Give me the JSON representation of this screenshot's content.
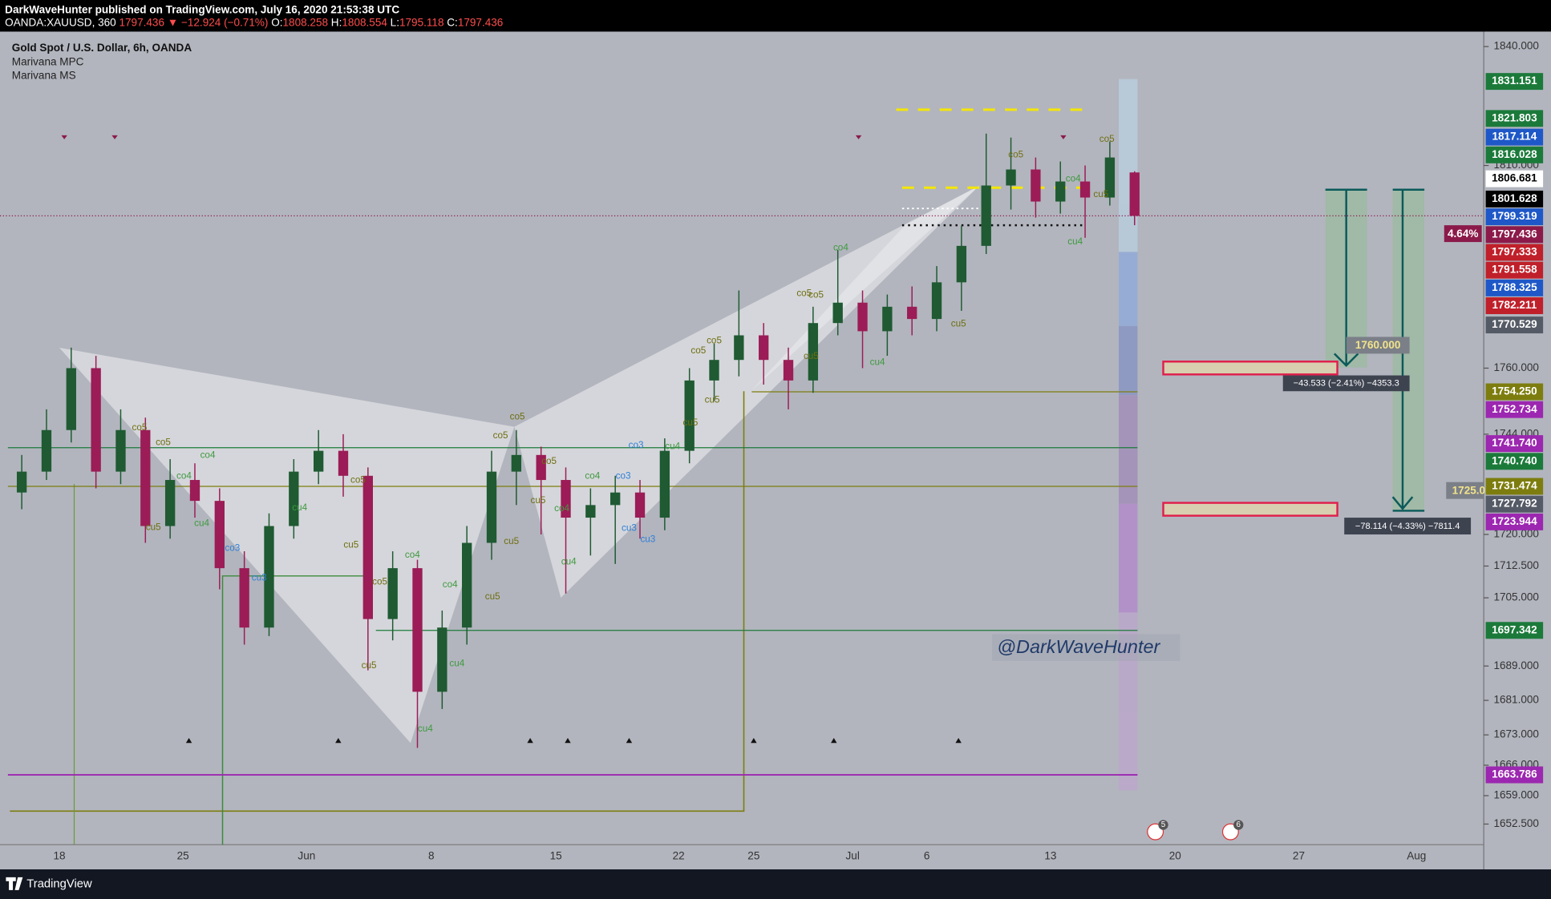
{
  "header": {
    "published": "DarkWaveHunter published on TradingView.com, July 16, 2020 21:53:38 UTC",
    "symbol": "OANDA:XAUUSD, 360",
    "last": "1797.436",
    "change": "▼ −12.924 (−0.71%)",
    "o_label": "O:",
    "o": "1808.258",
    "h_label": "H:",
    "h": "1808.554",
    "l_label": "L:",
    "l": "1795.118",
    "c_label": "C:",
    "c": "1797.436"
  },
  "legend": [
    "Gold Spot / U.S. Dollar, 6h, OANDA",
    "Marivana MPC",
    "Marivana MS"
  ],
  "watermark": "@DarkWaveHunter",
  "footer": "TradingView",
  "percent_label": "4.64%",
  "position_tools": {
    "target1": "1760.000",
    "stats1": "−43.533 (−2.41%) −4353.3",
    "target2": "1725.0",
    "stats2": "−78.114 (−4.33%) −7811.4"
  },
  "events": [
    "5",
    "6"
  ],
  "chart_data": {
    "type": "candlestick",
    "log": true,
    "grid": false,
    "up_color": "#1f5a32",
    "down_color": "#9b1c56",
    "ylim": [
      1647.8,
      1842.8
    ],
    "yticks": [
      {
        "value": 1840,
        "label": "1840.000"
      },
      {
        "value": 1810,
        "label": "1810.000"
      },
      {
        "value": 1760,
        "label": "1760.000"
      },
      {
        "value": 1744,
        "label": "1744.000"
      },
      {
        "value": 1720,
        "label": "1720.000"
      },
      {
        "value": 1712.5,
        "label": "1712.500"
      },
      {
        "value": 1705,
        "label": "1705.000"
      },
      {
        "value": 1689,
        "label": "1689.000"
      },
      {
        "value": 1681,
        "label": "1681.000"
      },
      {
        "value": 1673,
        "label": "1673.000"
      },
      {
        "value": 1666,
        "label": "1666.000"
      },
      {
        "value": 1659,
        "label": "1659.000"
      },
      {
        "value": 1652.5,
        "label": "1652.500"
      }
    ],
    "xtick_labels": [
      "18",
      "25",
      "Jun",
      "8",
      "15",
      "22",
      "25",
      "Jul",
      "6",
      "13",
      "20",
      "27",
      "Aug"
    ],
    "open": [
      1730,
      1735,
      1745,
      1760,
      1735,
      1745,
      1722,
      1733,
      1728,
      1712,
      1698,
      1722,
      1735,
      1740,
      1734,
      1700,
      1712,
      1683,
      1698,
      1718,
      1735,
      1739,
      1733,
      1724,
      1727,
      1730,
      1724,
      1740,
      1757,
      1762,
      1768,
      1762,
      1757,
      1771,
      1776,
      1769,
      1775,
      1772,
      1781,
      1790,
      1805,
      1809,
      1801,
      1806,
      1802,
      1808.258
    ],
    "high": [
      1739,
      1750,
      1765,
      1763,
      1750,
      1748,
      1738,
      1737,
      1731,
      1716,
      1725,
      1738,
      1745,
      1744,
      1736,
      1716,
      1714,
      1702,
      1722,
      1740,
      1745,
      1741,
      1736,
      1731,
      1734,
      1733,
      1743,
      1760,
      1766,
      1779,
      1771,
      1765,
      1775,
      1789,
      1779,
      1778,
      1780,
      1785,
      1795,
      1818,
      1817,
      1812,
      1811,
      1810,
      1816,
      1808.554
    ],
    "low": [
      1726,
      1733,
      1742,
      1731,
      1732,
      1718,
      1719,
      1724,
      1707,
      1694,
      1696,
      1719,
      1732,
      1729,
      1688,
      1695,
      1670,
      1679,
      1694,
      1714,
      1727,
      1720,
      1706,
      1715,
      1713,
      1719,
      1721,
      1737,
      1752,
      1758,
      1756,
      1750,
      1754,
      1768,
      1760,
      1763,
      1768,
      1769,
      1774,
      1788,
      1799,
      1797,
      1798,
      1792,
      1800,
      1795.118
    ],
    "close": [
      1735,
      1745,
      1760,
      1735,
      1745,
      1722,
      1733,
      1728,
      1712,
      1698,
      1722,
      1735,
      1740,
      1734,
      1700,
      1712,
      1683,
      1698,
      1718,
      1735,
      1739,
      1733,
      1724,
      1727,
      1730,
      1724,
      1740,
      1757,
      1762,
      1768,
      1762,
      1757,
      1771,
      1776,
      1769,
      1775,
      1772,
      1781,
      1790,
      1805,
      1809,
      1801,
      1806,
      1802,
      1812,
      1797.436
    ],
    "price_labels": [
      {
        "value": 1831.151,
        "label": "1831.151",
        "color": "#1b7a3a"
      },
      {
        "value": 1821.803,
        "label": "1821.803",
        "color": "#1b7a3a"
      },
      {
        "value": 1817.114,
        "label": "1817.114",
        "color": "#1e58c8"
      },
      {
        "value": 1816.028,
        "label": "1816.028",
        "color": "#1b7a3a"
      },
      {
        "value": 1806.681,
        "label": "1806.681",
        "color": "#ffffff"
      },
      {
        "value": 1801.628,
        "label": "1801.628",
        "color": "#000000"
      },
      {
        "value": 1799.319,
        "label": "1799.319",
        "color": "#1e58c8"
      },
      {
        "value": 1797.436,
        "label": "1797.436",
        "color": "#8b1a4a"
      },
      {
        "value": 1797.333,
        "label": "1797.333",
        "color": "#c0202a"
      },
      {
        "value": 1791.558,
        "label": "1791.558",
        "color": "#c0202a"
      },
      {
        "value": 1788.325,
        "label": "1788.325",
        "color": "#1e58c8"
      },
      {
        "value": 1782.211,
        "label": "1782.211",
        "color": "#c0202a"
      },
      {
        "value": 1770.529,
        "label": "1770.529",
        "color": "#555b66"
      },
      {
        "value": 1754.25,
        "label": "1754.250",
        "color": "#7d7d0f"
      },
      {
        "value": 1752.734,
        "label": "1752.734",
        "color": "#9c27b0"
      },
      {
        "value": 1741.74,
        "label": "1741.740",
        "color": "#9c27b0"
      },
      {
        "value": 1740.74,
        "label": "1740.740",
        "color": "#1b7a3a"
      },
      {
        "value": 1731.474,
        "label": "1731.474",
        "color": "#7d7d0f"
      },
      {
        "value": 1727.792,
        "label": "1727.792",
        "color": "#555b66"
      },
      {
        "value": 1723.944,
        "label": "1723.944",
        "color": "#9c27b0"
      },
      {
        "value": 1697.342,
        "label": "1697.342",
        "color": "#1b7a3a"
      },
      {
        "value": 1663.786,
        "label": "1663.786",
        "color": "#9c27b0"
      }
    ],
    "annotations": [
      "co5",
      "cu5",
      "co5",
      "co4",
      "co4",
      "cu4",
      "co3",
      "cu3",
      "cu4",
      "co5",
      "cu5",
      "co5",
      "cu5",
      "co4",
      "co4",
      "cu4",
      "cu4",
      "cu5",
      "co5",
      "co5",
      "cu5",
      "co5",
      "cu5",
      "co4",
      "cu4",
      "co4",
      "co3",
      "co3",
      "cu3",
      "cu3",
      "cu4",
      "cu5",
      "co5",
      "co5",
      "cu5",
      "co5",
      "co5",
      "cu5",
      "co4",
      "cu4",
      "cu5",
      "co5",
      "co4",
      "cu5",
      "co5",
      "cu4"
    ]
  }
}
